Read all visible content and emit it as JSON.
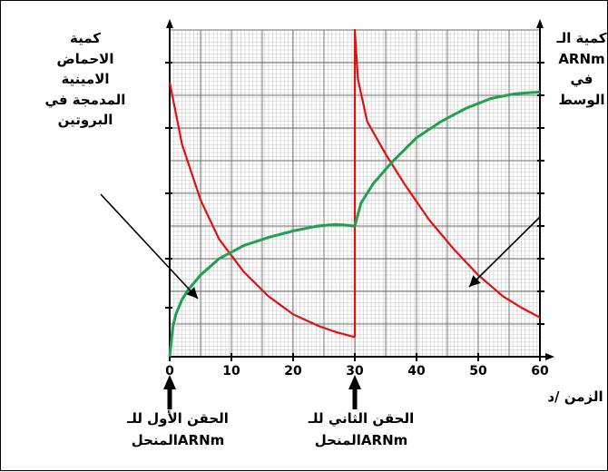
{
  "chart_data": {
    "type": "line",
    "x_unit_label": "الزمن /د",
    "xlim": [
      0,
      60
    ],
    "ylim": [
      0,
      10
    ],
    "x_ticks": [
      0,
      10,
      20,
      30,
      40,
      50,
      60
    ],
    "x_tick_labels": [
      "0",
      "10",
      "20",
      "30",
      "40",
      "50",
      "60"
    ],
    "y_ticks": [
      1.5,
      3,
      5,
      7,
      9
    ],
    "y_ticks_right": [
      1,
      2,
      3,
      4,
      5,
      6,
      7,
      8,
      9
    ],
    "grid": true,
    "left_axis_label": "كمية الاحماض الامينية المدمجة في البروتين",
    "right_axis_label": "كمية الـ ARNm في الوسط",
    "series": [
      {
        "color": "#e01010",
        "segments": [
          {
            "x": [
              0,
              2,
              5,
              8,
              12,
              16,
              20,
              24,
              27,
              30
            ],
            "y": [
              8.4,
              6.5,
              4.8,
              3.6,
              2.6,
              1.85,
              1.3,
              0.95,
              0.75,
              0.6
            ]
          },
          {
            "x": [
              30,
              30,
              30.5,
              32,
              35,
              38,
              42,
              46,
              50,
              54,
              57,
              60
            ],
            "y": [
              0.6,
              10,
              8.5,
              7.2,
              6.2,
              5.3,
              4.2,
              3.3,
              2.5,
              1.85,
              1.5,
              1.2
            ]
          }
        ]
      },
      {
        "color": "#20a050",
        "segments": [
          {
            "x": [
              0,
              0.5,
              1,
              2,
              3,
              5,
              8,
              12,
              16,
              20,
              24,
              27,
              30
            ],
            "y": [
              0,
              0.9,
              1.3,
              1.75,
              2.05,
              2.5,
              3.0,
              3.4,
              3.65,
              3.85,
              4.0,
              4.05,
              4.0
            ]
          },
          {
            "x": [
              30,
              31,
              33,
              36,
              40,
              44,
              48,
              52,
              56,
              60
            ],
            "y": [
              4.0,
              4.7,
              5.3,
              5.95,
              6.7,
              7.2,
              7.6,
              7.9,
              8.05,
              8.1
            ]
          }
        ]
      }
    ],
    "annotations": [
      {
        "text": "الحقن الأول للـ ARNm المنحل",
        "x": 0
      },
      {
        "text": "الحقن الثاني للـ ARNm المنحل",
        "x": 30
      }
    ]
  },
  "labels": {
    "left_line1": "كمية",
    "left_line2": "الاحماض",
    "left_line3": "الامينية",
    "left_line4": "المدمجة في",
    "left_line5": "البروتين",
    "right_line1": "كمية الـ",
    "right_line2": "ARNm",
    "right_line3": "في",
    "right_line4": "الوسط",
    "x_unit": "الزمن /د",
    "inj1_line1": "الحقن الأول للـ",
    "inj1_line2": "ARNmالمنحل",
    "inj2_line1": "الحقن الثاني للـ",
    "inj2_line2": "ARNmالمنحل"
  }
}
